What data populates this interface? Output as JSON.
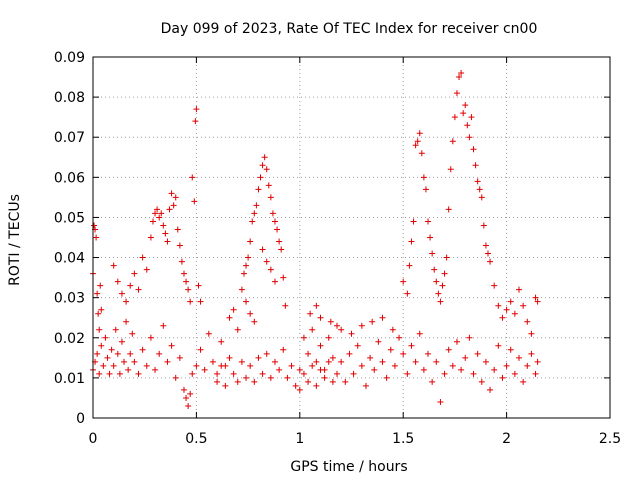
{
  "chart_data": {
    "type": "scatter",
    "title": "Day 099 of 2023, Rate Of TEC Index for receiver cn00",
    "xlabel": "GPS time / hours",
    "ylabel": "ROTI / TECUs",
    "xlim": [
      0,
      2.5
    ],
    "ylim": [
      0,
      0.09
    ],
    "xticks": [
      0,
      0.5,
      1,
      1.5,
      2,
      2.5
    ],
    "xtick_labels": [
      "0",
      "0.5",
      "1",
      "1.5",
      "2",
      "2.5"
    ],
    "yticks": [
      0,
      0.01,
      0.02,
      0.03,
      0.04,
      0.05,
      0.06,
      0.07,
      0.08,
      0.09
    ],
    "ytick_labels": [
      "0",
      "0.01",
      "0.02",
      "0.03",
      "0.04",
      "0.05",
      "0.06",
      "0.07",
      "0.08",
      "0.09"
    ],
    "grid": true,
    "marker": "+",
    "color": "#e00000",
    "series": [
      {
        "name": "ROTI",
        "points": [
          [
            0.0,
            0.036
          ],
          [
            0.005,
            0.048
          ],
          [
            0.01,
            0.047
          ],
          [
            0.015,
            0.045
          ],
          [
            0.02,
            0.031
          ],
          [
            0.025,
            0.026
          ],
          [
            0.03,
            0.022
          ],
          [
            0.035,
            0.033
          ],
          [
            0.04,
            0.027
          ],
          [
            0.0,
            0.012
          ],
          [
            0.01,
            0.014
          ],
          [
            0.02,
            0.016
          ],
          [
            0.03,
            0.011
          ],
          [
            0.04,
            0.018
          ],
          [
            0.05,
            0.013
          ],
          [
            0.06,
            0.02
          ],
          [
            0.07,
            0.015
          ],
          [
            0.08,
            0.011
          ],
          [
            0.09,
            0.017
          ],
          [
            0.1,
            0.013
          ],
          [
            0.11,
            0.022
          ],
          [
            0.12,
            0.016
          ],
          [
            0.13,
            0.011
          ],
          [
            0.14,
            0.019
          ],
          [
            0.15,
            0.014
          ],
          [
            0.16,
            0.024
          ],
          [
            0.17,
            0.012
          ],
          [
            0.18,
            0.016
          ],
          [
            0.19,
            0.021
          ],
          [
            0.1,
            0.038
          ],
          [
            0.12,
            0.034
          ],
          [
            0.14,
            0.031
          ],
          [
            0.16,
            0.029
          ],
          [
            0.18,
            0.033
          ],
          [
            0.2,
            0.036
          ],
          [
            0.22,
            0.032
          ],
          [
            0.24,
            0.04
          ],
          [
            0.26,
            0.037
          ],
          [
            0.28,
            0.045
          ],
          [
            0.29,
            0.049
          ],
          [
            0.3,
            0.051
          ],
          [
            0.31,
            0.052
          ],
          [
            0.32,
            0.05
          ],
          [
            0.33,
            0.051
          ],
          [
            0.34,
            0.048
          ],
          [
            0.35,
            0.046
          ],
          [
            0.36,
            0.044
          ],
          [
            0.37,
            0.052
          ],
          [
            0.38,
            0.056
          ],
          [
            0.39,
            0.053
          ],
          [
            0.4,
            0.055
          ],
          [
            0.41,
            0.047
          ],
          [
            0.42,
            0.043
          ],
          [
            0.43,
            0.039
          ],
          [
            0.44,
            0.036
          ],
          [
            0.45,
            0.034
          ],
          [
            0.46,
            0.032
          ],
          [
            0.47,
            0.029
          ],
          [
            0.48,
            0.06
          ],
          [
            0.49,
            0.054
          ],
          [
            0.495,
            0.074
          ],
          [
            0.5,
            0.077
          ],
          [
            0.51,
            0.033
          ],
          [
            0.52,
            0.029
          ],
          [
            0.2,
            0.014
          ],
          [
            0.22,
            0.011
          ],
          [
            0.24,
            0.017
          ],
          [
            0.26,
            0.013
          ],
          [
            0.28,
            0.02
          ],
          [
            0.3,
            0.012
          ],
          [
            0.32,
            0.016
          ],
          [
            0.34,
            0.023
          ],
          [
            0.36,
            0.014
          ],
          [
            0.38,
            0.018
          ],
          [
            0.4,
            0.01
          ],
          [
            0.42,
            0.015
          ],
          [
            0.44,
            0.007
          ],
          [
            0.45,
            0.005
          ],
          [
            0.46,
            0.003
          ],
          [
            0.47,
            0.006
          ],
          [
            0.48,
            0.011
          ],
          [
            0.5,
            0.013
          ],
          [
            0.52,
            0.017
          ],
          [
            0.54,
            0.012
          ],
          [
            0.56,
            0.021
          ],
          [
            0.58,
            0.014
          ],
          [
            0.6,
            0.011
          ],
          [
            0.62,
            0.019
          ],
          [
            0.64,
            0.013
          ],
          [
            0.66,
            0.025
          ],
          [
            0.68,
            0.027
          ],
          [
            0.7,
            0.022
          ],
          [
            0.72,
            0.032
          ],
          [
            0.73,
            0.036
          ],
          [
            0.74,
            0.038
          ],
          [
            0.75,
            0.04
          ],
          [
            0.76,
            0.044
          ],
          [
            0.77,
            0.049
          ],
          [
            0.78,
            0.051
          ],
          [
            0.79,
            0.053
          ],
          [
            0.8,
            0.057
          ],
          [
            0.81,
            0.06
          ],
          [
            0.82,
            0.063
          ],
          [
            0.83,
            0.065
          ],
          [
            0.84,
            0.062
          ],
          [
            0.85,
            0.058
          ],
          [
            0.86,
            0.055
          ],
          [
            0.87,
            0.051
          ],
          [
            0.88,
            0.049
          ],
          [
            0.89,
            0.047
          ],
          [
            0.9,
            0.044
          ],
          [
            0.91,
            0.042
          ],
          [
            0.92,
            0.035
          ],
          [
            0.93,
            0.028
          ],
          [
            0.82,
            0.042
          ],
          [
            0.84,
            0.039
          ],
          [
            0.86,
            0.037
          ],
          [
            0.88,
            0.034
          ],
          [
            0.74,
            0.029
          ],
          [
            0.76,
            0.026
          ],
          [
            0.78,
            0.024
          ],
          [
            0.6,
            0.009
          ],
          [
            0.62,
            0.013
          ],
          [
            0.64,
            0.008
          ],
          [
            0.66,
            0.015
          ],
          [
            0.68,
            0.011
          ],
          [
            0.7,
            0.009
          ],
          [
            0.72,
            0.014
          ],
          [
            0.74,
            0.01
          ],
          [
            0.76,
            0.013
          ],
          [
            0.78,
            0.009
          ],
          [
            0.8,
            0.015
          ],
          [
            0.82,
            0.011
          ],
          [
            0.84,
            0.016
          ],
          [
            0.86,
            0.01
          ],
          [
            0.88,
            0.014
          ],
          [
            0.9,
            0.012
          ],
          [
            0.92,
            0.017
          ],
          [
            0.94,
            0.01
          ],
          [
            0.96,
            0.013
          ],
          [
            0.98,
            0.008
          ],
          [
            1.0,
            0.012
          ],
          [
            1.02,
            0.02
          ],
          [
            1.04,
            0.016
          ],
          [
            1.06,
            0.022
          ],
          [
            1.08,
            0.014
          ],
          [
            1.1,
            0.018
          ],
          [
            1.12,
            0.012
          ],
          [
            1.14,
            0.02
          ],
          [
            1.16,
            0.015
          ],
          [
            1.18,
            0.023
          ],
          [
            1.0,
            0.007
          ],
          [
            1.02,
            0.011
          ],
          [
            1.04,
            0.009
          ],
          [
            1.06,
            0.013
          ],
          [
            1.08,
            0.008
          ],
          [
            1.1,
            0.012
          ],
          [
            1.12,
            0.01
          ],
          [
            1.14,
            0.014
          ],
          [
            1.16,
            0.009
          ],
          [
            1.18,
            0.011
          ],
          [
            1.05,
            0.026
          ],
          [
            1.08,
            0.028
          ],
          [
            1.1,
            0.025
          ],
          [
            1.15,
            0.024
          ],
          [
            1.2,
            0.022
          ],
          [
            1.25,
            0.021
          ],
          [
            1.3,
            0.023
          ],
          [
            1.35,
            0.024
          ],
          [
            1.4,
            0.025
          ],
          [
            1.45,
            0.022
          ],
          [
            1.2,
            0.014
          ],
          [
            1.22,
            0.009
          ],
          [
            1.24,
            0.016
          ],
          [
            1.26,
            0.011
          ],
          [
            1.28,
            0.018
          ],
          [
            1.3,
            0.013
          ],
          [
            1.32,
            0.008
          ],
          [
            1.34,
            0.015
          ],
          [
            1.36,
            0.012
          ],
          [
            1.38,
            0.019
          ],
          [
            1.4,
            0.014
          ],
          [
            1.42,
            0.01
          ],
          [
            1.44,
            0.017
          ],
          [
            1.46,
            0.013
          ],
          [
            1.48,
            0.02
          ],
          [
            1.5,
            0.016
          ],
          [
            1.52,
            0.011
          ],
          [
            1.54,
            0.018
          ],
          [
            1.56,
            0.014
          ],
          [
            1.58,
            0.021
          ],
          [
            1.5,
            0.034
          ],
          [
            1.52,
            0.031
          ],
          [
            1.53,
            0.038
          ],
          [
            1.54,
            0.044
          ],
          [
            1.55,
            0.049
          ],
          [
            1.56,
            0.068
          ],
          [
            1.57,
            0.069
          ],
          [
            1.58,
            0.071
          ],
          [
            1.59,
            0.066
          ],
          [
            1.6,
            0.06
          ],
          [
            1.61,
            0.057
          ],
          [
            1.62,
            0.049
          ],
          [
            1.63,
            0.045
          ],
          [
            1.64,
            0.041
          ],
          [
            1.65,
            0.037
          ],
          [
            1.66,
            0.034
          ],
          [
            1.67,
            0.031
          ],
          [
            1.68,
            0.029
          ],
          [
            1.69,
            0.033
          ],
          [
            1.7,
            0.036
          ],
          [
            1.71,
            0.04
          ],
          [
            1.72,
            0.052
          ],
          [
            1.73,
            0.062
          ],
          [
            1.74,
            0.069
          ],
          [
            1.75,
            0.075
          ],
          [
            1.76,
            0.081
          ],
          [
            1.77,
            0.085
          ],
          [
            1.78,
            0.086
          ],
          [
            1.79,
            0.076
          ],
          [
            1.8,
            0.078
          ],
          [
            1.81,
            0.073
          ],
          [
            1.82,
            0.07
          ],
          [
            1.83,
            0.075
          ],
          [
            1.84,
            0.067
          ],
          [
            1.85,
            0.063
          ],
          [
            1.86,
            0.059
          ],
          [
            1.87,
            0.057
          ],
          [
            1.88,
            0.055
          ],
          [
            1.89,
            0.048
          ],
          [
            1.9,
            0.043
          ],
          [
            1.91,
            0.041
          ],
          [
            1.92,
            0.039
          ],
          [
            1.94,
            0.033
          ],
          [
            1.96,
            0.028
          ],
          [
            1.98,
            0.025
          ],
          [
            2.0,
            0.027
          ],
          [
            2.02,
            0.029
          ],
          [
            2.04,
            0.026
          ],
          [
            2.06,
            0.032
          ],
          [
            2.08,
            0.028
          ],
          [
            2.1,
            0.024
          ],
          [
            2.12,
            0.021
          ],
          [
            2.14,
            0.03
          ],
          [
            2.15,
            0.029
          ],
          [
            1.6,
            0.012
          ],
          [
            1.62,
            0.016
          ],
          [
            1.64,
            0.009
          ],
          [
            1.66,
            0.014
          ],
          [
            1.68,
            0.004
          ],
          [
            1.7,
            0.011
          ],
          [
            1.72,
            0.017
          ],
          [
            1.74,
            0.013
          ],
          [
            1.76,
            0.019
          ],
          [
            1.78,
            0.012
          ],
          [
            1.8,
            0.015
          ],
          [
            1.82,
            0.02
          ],
          [
            1.84,
            0.011
          ],
          [
            1.86,
            0.016
          ],
          [
            1.88,
            0.009
          ],
          [
            1.9,
            0.014
          ],
          [
            1.92,
            0.007
          ],
          [
            1.94,
            0.012
          ],
          [
            1.96,
            0.018
          ],
          [
            1.98,
            0.01
          ],
          [
            2.0,
            0.013
          ],
          [
            2.02,
            0.017
          ],
          [
            2.04,
            0.011
          ],
          [
            2.06,
            0.015
          ],
          [
            2.08,
            0.009
          ],
          [
            2.1,
            0.013
          ],
          [
            2.12,
            0.016
          ],
          [
            2.14,
            0.011
          ],
          [
            2.15,
            0.014
          ]
        ]
      }
    ]
  }
}
